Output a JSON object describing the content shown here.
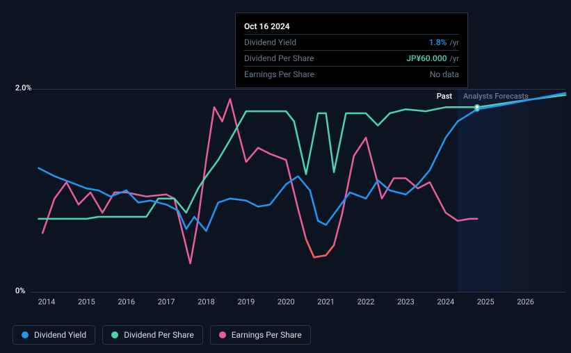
{
  "tooltip": {
    "date": "Oct 16 2024",
    "rows": [
      {
        "label": "Dividend Yield",
        "value": "1.8%",
        "unit": "/yr",
        "color": "#2196f3"
      },
      {
        "label": "Dividend Per Share",
        "value": "JP¥60.000",
        "unit": "/yr",
        "color": "#4dd4ac"
      },
      {
        "label": "Earnings Per Share",
        "value": "No data",
        "unit": "",
        "color": "#6b7a8f",
        "nodata": true
      }
    ]
  },
  "chart": {
    "type": "line",
    "background_color": "#0d1421",
    "grid_color": "#2a3548",
    "ylim": [
      0,
      2.0
    ],
    "ylabels": [
      {
        "v": 2.0,
        "text": "2.0%"
      },
      {
        "v": 0,
        "text": "0%"
      }
    ],
    "xlim": [
      2013.6,
      2027.0
    ],
    "xticks": [
      2014,
      2015,
      2016,
      2017,
      2018,
      2019,
      2020,
      2021,
      2022,
      2023,
      2024,
      2025,
      2026
    ],
    "past_label": "Past",
    "past_label_color": "#ffffff",
    "forecast_label": "Analysts Forecasts",
    "forecast_label_color": "#6b7a8f",
    "forecast_start": 2024.3,
    "marker_x": 2024.79,
    "line_width": 2.5,
    "series": [
      {
        "name": "Dividend Yield",
        "color_past": "#2196f3",
        "color_forecast": "#2196f3",
        "points": [
          [
            2013.8,
            1.22
          ],
          [
            2014.2,
            1.14
          ],
          [
            2014.6,
            1.08
          ],
          [
            2015.0,
            1.02
          ],
          [
            2015.3,
            1.0
          ],
          [
            2015.6,
            0.94
          ],
          [
            2016.0,
            1.0
          ],
          [
            2016.3,
            0.88
          ],
          [
            2016.6,
            0.9
          ],
          [
            2017.0,
            0.86
          ],
          [
            2017.3,
            0.8
          ],
          [
            2017.5,
            0.62
          ],
          [
            2017.7,
            0.74
          ],
          [
            2018.0,
            0.6
          ],
          [
            2018.3,
            0.88
          ],
          [
            2018.6,
            0.92
          ],
          [
            2019.0,
            0.9
          ],
          [
            2019.3,
            0.84
          ],
          [
            2019.6,
            0.86
          ],
          [
            2020.0,
            1.06
          ],
          [
            2020.3,
            1.14
          ],
          [
            2020.6,
            1.0
          ],
          [
            2020.8,
            0.7
          ],
          [
            2021.0,
            0.66
          ],
          [
            2021.3,
            0.82
          ],
          [
            2021.6,
            0.98
          ],
          [
            2022.0,
            0.92
          ],
          [
            2022.3,
            1.1
          ],
          [
            2022.6,
            1.0
          ],
          [
            2023.0,
            0.96
          ],
          [
            2023.3,
            1.06
          ],
          [
            2023.6,
            1.2
          ],
          [
            2024.0,
            1.52
          ],
          [
            2024.3,
            1.68
          ],
          [
            2024.79,
            1.8
          ],
          [
            2025.4,
            1.84
          ],
          [
            2026.2,
            1.9
          ],
          [
            2027.0,
            1.96
          ]
        ],
        "marker_y": 1.8
      },
      {
        "name": "Dividend Per Share",
        "color_past": "#4dd4ac",
        "color_forecast": "#4dd4ac",
        "points": [
          [
            2013.8,
            0.72
          ],
          [
            2015.0,
            0.72
          ],
          [
            2015.3,
            0.74
          ],
          [
            2016.5,
            0.74
          ],
          [
            2016.8,
            0.92
          ],
          [
            2017.2,
            0.92
          ],
          [
            2017.5,
            0.78
          ],
          [
            2017.8,
            1.02
          ],
          [
            2018.0,
            1.14
          ],
          [
            2018.3,
            1.3
          ],
          [
            2018.6,
            1.5
          ],
          [
            2019.0,
            1.78
          ],
          [
            2020.0,
            1.78
          ],
          [
            2020.2,
            1.68
          ],
          [
            2020.5,
            1.16
          ],
          [
            2020.8,
            1.76
          ],
          [
            2021.0,
            1.76
          ],
          [
            2021.2,
            1.18
          ],
          [
            2021.5,
            1.76
          ],
          [
            2022.0,
            1.76
          ],
          [
            2022.3,
            1.64
          ],
          [
            2022.6,
            1.76
          ],
          [
            2023.0,
            1.8
          ],
          [
            2023.5,
            1.78
          ],
          [
            2024.0,
            1.82
          ],
          [
            2024.3,
            1.82
          ],
          [
            2024.79,
            1.82
          ],
          [
            2025.5,
            1.86
          ],
          [
            2026.2,
            1.9
          ],
          [
            2027.0,
            1.94
          ]
        ],
        "marker_y": 1.82
      },
      {
        "name": "Earnings Per Share",
        "color_past": "#e85d9b",
        "color_forecast": "#e85d9b",
        "points": [
          [
            2013.9,
            0.58
          ],
          [
            2014.2,
            0.92
          ],
          [
            2014.5,
            1.08
          ],
          [
            2014.8,
            0.86
          ],
          [
            2015.1,
            0.98
          ],
          [
            2015.4,
            0.78
          ],
          [
            2015.7,
            0.98
          ],
          [
            2016.0,
            0.98
          ],
          [
            2016.5,
            0.94
          ],
          [
            2017.0,
            0.96
          ],
          [
            2017.2,
            0.92
          ],
          [
            2017.4,
            0.6
          ],
          [
            2017.6,
            0.28
          ],
          [
            2017.8,
            0.72
          ],
          [
            2018.0,
            1.3
          ],
          [
            2018.2,
            1.82
          ],
          [
            2018.4,
            1.68
          ],
          [
            2018.6,
            1.9
          ],
          [
            2018.8,
            1.58
          ],
          [
            2019.0,
            1.28
          ],
          [
            2019.3,
            1.42
          ],
          [
            2019.6,
            1.36
          ],
          [
            2020.0,
            1.3
          ],
          [
            2020.3,
            0.82
          ],
          [
            2020.5,
            0.52
          ],
          [
            2020.7,
            0.34
          ],
          [
            2021.0,
            0.36
          ],
          [
            2021.2,
            0.46
          ],
          [
            2021.4,
            0.76
          ],
          [
            2021.7,
            1.34
          ],
          [
            2022.0,
            1.52
          ],
          [
            2022.2,
            1.22
          ],
          [
            2022.4,
            0.92
          ],
          [
            2022.7,
            1.12
          ],
          [
            2023.0,
            1.12
          ],
          [
            2023.3,
            1.02
          ],
          [
            2023.6,
            1.08
          ],
          [
            2024.0,
            0.78
          ],
          [
            2024.3,
            0.7
          ],
          [
            2024.6,
            0.72
          ],
          [
            2024.79,
            0.72
          ]
        ]
      }
    ],
    "eps_gradient_start": "#f25d5d",
    "legend": [
      {
        "name": "Dividend Yield",
        "color": "#2196f3"
      },
      {
        "name": "Dividend Per Share",
        "color": "#4dd4ac"
      },
      {
        "name": "Earnings Per Share",
        "color": "#e85d9b"
      }
    ]
  }
}
